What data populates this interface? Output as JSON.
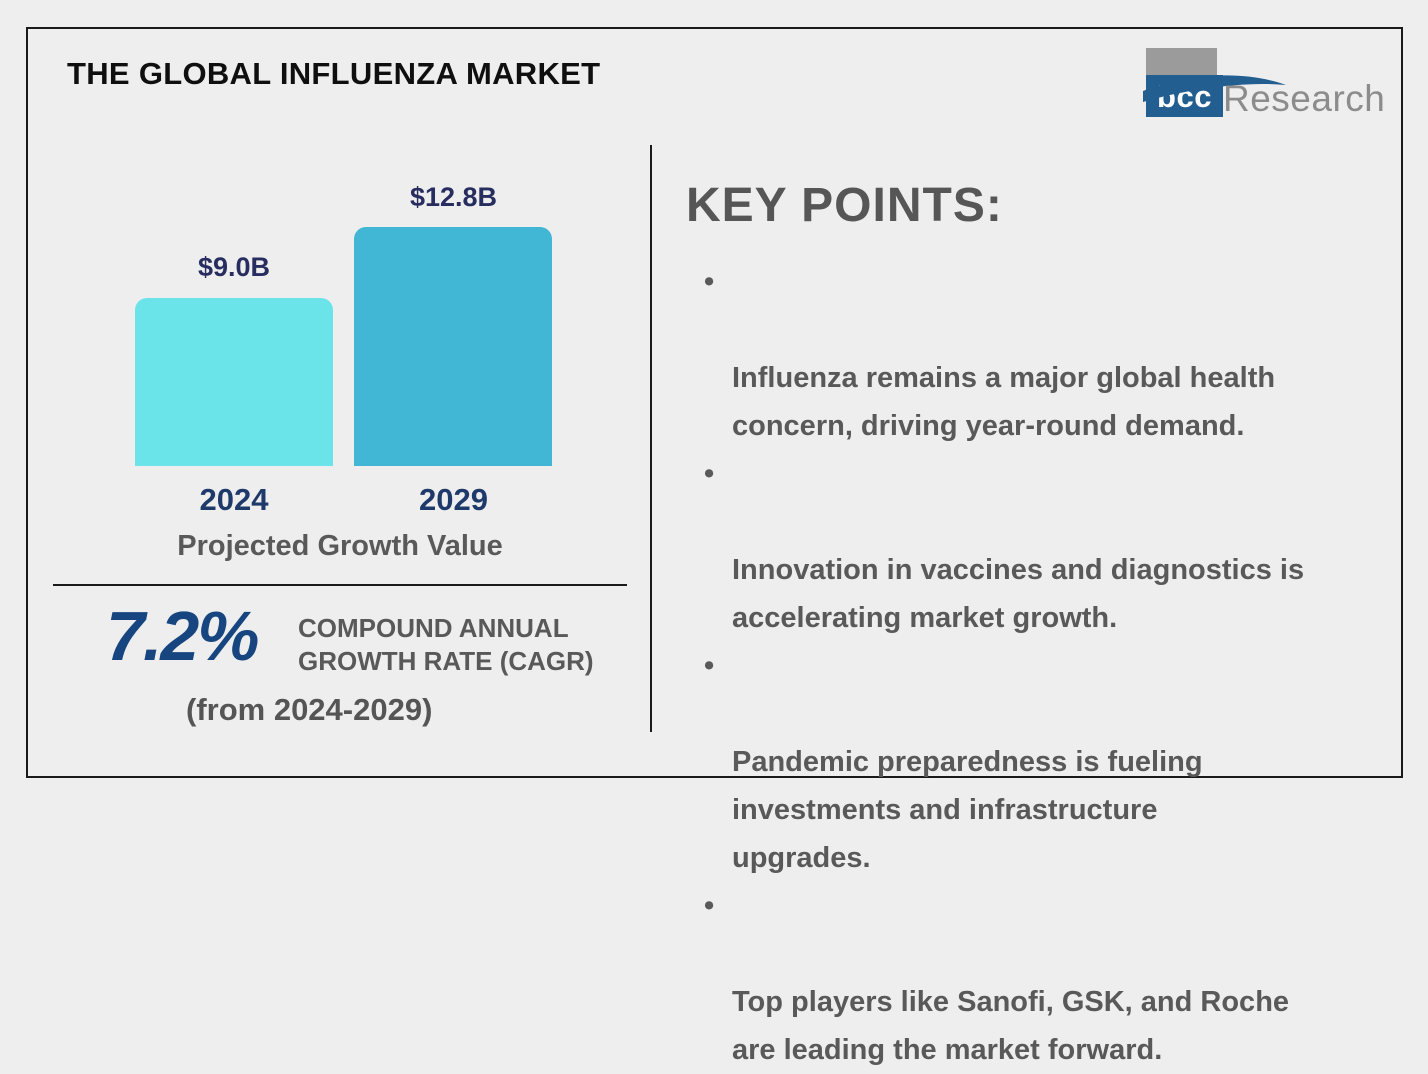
{
  "page": {
    "title": "THE GLOBAL INFLUENZA MARKET"
  },
  "logo": {
    "box_text": "bcc",
    "name": "Research"
  },
  "chart_data": {
    "type": "bar",
    "categories": [
      "2024",
      "2029"
    ],
    "values": [
      9.0,
      12.8
    ],
    "value_labels": [
      "$9.0B",
      "$12.8B"
    ],
    "title": "Projected Growth Value",
    "ylim": [
      0,
      12.8
    ],
    "grid": false,
    "bar_colors": [
      "#6BE4E9",
      "#42B6D5"
    ]
  },
  "cagr": {
    "value": "7.2%",
    "label": "COMPOUND ANNUAL\nGROWTH RATE (CAGR)",
    "range": "(from 2024-2029)"
  },
  "key_points": {
    "heading": "KEY POINTS:",
    "bullet_char": "•",
    "items": [
      "Influenza remains a major global health\nconcern, driving year-round demand.",
      "Innovation in vaccines and diagnostics is\naccelerating market growth.",
      "Pandemic preparedness is fueling\ninvestments and infrastructure\nupgrades.",
      "Top players like Sanofi, GSK, and Roche\nare leading the market forward."
    ]
  },
  "colors": {
    "background": "#EFEEEE",
    "frame_border": "#1A1A1A",
    "bar_2024": "#6BE4E9",
    "bar_2029": "#42B6D5",
    "value_label_navy": "#272D5F",
    "year_label_navy": "#1E3A6B",
    "cagr_blue": "#17457F",
    "gray_text": "#595959",
    "logo_blue": "#235E91",
    "logo_gray": "#9B9B9B",
    "research_gray": "#8C8C8C"
  }
}
